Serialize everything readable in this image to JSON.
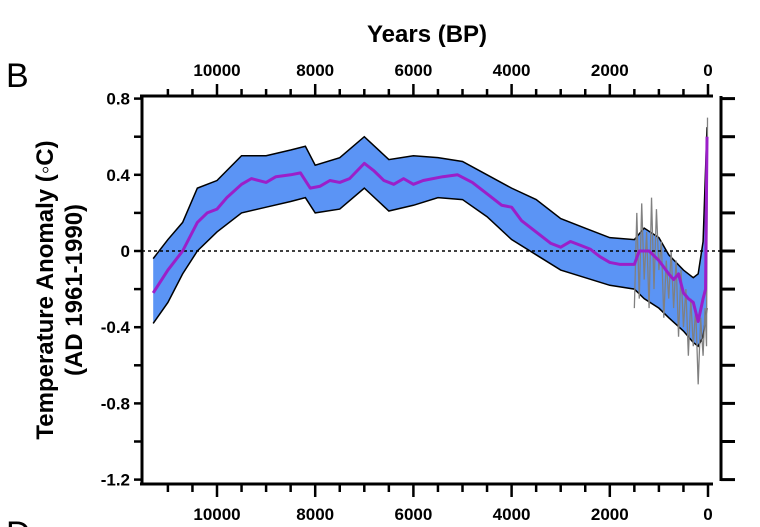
{
  "panel_label": "B",
  "next_panel_label": "D",
  "chart_data": {
    "type": "area",
    "title": "",
    "xlabel": "Years (BP)",
    "ylabel": "Temperature Anomaly (◦C)",
    "ylabel2": "(AD 1961-1990)",
    "xlim": [
      11500,
      0
    ],
    "ylim": [
      -1.2,
      0.8
    ],
    "x_ticks": [
      10000,
      8000,
      6000,
      4000,
      2000,
      0
    ],
    "x_tick_labels": [
      "10000",
      "8000",
      "6000",
      "4000",
      "2000",
      "0"
    ],
    "y_ticks": [
      0.8,
      0.4,
      0,
      -0.4,
      -0.8,
      -1.2
    ],
    "y_tick_labels": [
      "0.8",
      "0.4",
      "0",
      "-0.4",
      "-0.8",
      "-1.2"
    ],
    "x_reversed": true,
    "grid": false,
    "reference_line": {
      "y": 0,
      "style": "dotted"
    },
    "colors": {
      "band": "#5b94f5",
      "mean": "#9b1fc9",
      "noisy": "#808080",
      "band_edge": "#000000"
    },
    "band": {
      "x": [
        11300,
        11000,
        10700,
        10400,
        10000,
        9500,
        9000,
        8500,
        8200,
        8000,
        7500,
        7000,
        6500,
        6000,
        5500,
        5000,
        4500,
        4000,
        3500,
        3000,
        2500,
        2000,
        1500,
        1300,
        1000,
        800,
        500,
        300,
        200,
        100,
        20
      ],
      "upper": [
        -0.04,
        0.06,
        0.15,
        0.33,
        0.37,
        0.5,
        0.5,
        0.53,
        0.55,
        0.45,
        0.49,
        0.6,
        0.48,
        0.5,
        0.49,
        0.47,
        0.4,
        0.33,
        0.27,
        0.17,
        0.12,
        0.07,
        0.06,
        0.12,
        0.07,
        -0.02,
        -0.1,
        -0.14,
        -0.12,
        0.05,
        0.65
      ],
      "lower": [
        -0.38,
        -0.27,
        -0.12,
        0.0,
        0.1,
        0.2,
        0.23,
        0.26,
        0.28,
        0.2,
        0.22,
        0.33,
        0.21,
        0.24,
        0.28,
        0.27,
        0.18,
        0.06,
        -0.02,
        -0.1,
        -0.14,
        -0.18,
        -0.2,
        -0.25,
        -0.3,
        -0.35,
        -0.42,
        -0.48,
        -0.5,
        -0.45,
        -0.3
      ]
    },
    "mean": {
      "x": [
        11300,
        11000,
        10700,
        10400,
        10200,
        10000,
        9800,
        9500,
        9300,
        9000,
        8800,
        8500,
        8300,
        8100,
        7900,
        7700,
        7500,
        7300,
        7000,
        6800,
        6600,
        6400,
        6200,
        6000,
        5800,
        5400,
        5100,
        4800,
        4500,
        4200,
        4000,
        3800,
        3600,
        3400,
        3200,
        3000,
        2800,
        2600,
        2400,
        2200,
        2000,
        1800,
        1500,
        1400,
        1200,
        1000,
        800,
        700,
        600,
        500,
        400,
        300,
        200,
        100,
        50,
        20
      ],
      "y": [
        -0.22,
        -0.1,
        0.0,
        0.15,
        0.2,
        0.22,
        0.28,
        0.35,
        0.38,
        0.36,
        0.39,
        0.4,
        0.41,
        0.33,
        0.34,
        0.37,
        0.36,
        0.38,
        0.46,
        0.42,
        0.37,
        0.35,
        0.38,
        0.35,
        0.37,
        0.39,
        0.4,
        0.36,
        0.3,
        0.24,
        0.23,
        0.16,
        0.12,
        0.08,
        0.04,
        0.02,
        0.05,
        0.03,
        0.01,
        -0.03,
        -0.06,
        -0.07,
        -0.07,
        0.0,
        0.0,
        -0.05,
        -0.12,
        -0.15,
        -0.12,
        -0.22,
        -0.25,
        -0.27,
        -0.37,
        -0.25,
        -0.2,
        0.6
      ]
    },
    "noisy": {
      "x": [
        1500,
        1450,
        1400,
        1350,
        1300,
        1250,
        1200,
        1150,
        1100,
        1050,
        1000,
        950,
        900,
        850,
        800,
        750,
        700,
        650,
        600,
        550,
        500,
        450,
        400,
        350,
        300,
        250,
        200,
        150,
        100,
        60,
        30,
        10
      ],
      "y": [
        -0.3,
        0.2,
        -0.25,
        0.25,
        -0.15,
        0.1,
        -0.3,
        0.28,
        -0.2,
        0.22,
        -0.1,
        0.05,
        -0.35,
        -0.05,
        -0.25,
        0.0,
        -0.3,
        -0.05,
        -0.45,
        -0.1,
        -0.4,
        -0.2,
        -0.55,
        -0.25,
        -0.5,
        -0.3,
        -0.7,
        -0.35,
        -0.55,
        -0.3,
        -0.5,
        0.7
      ]
    }
  }
}
